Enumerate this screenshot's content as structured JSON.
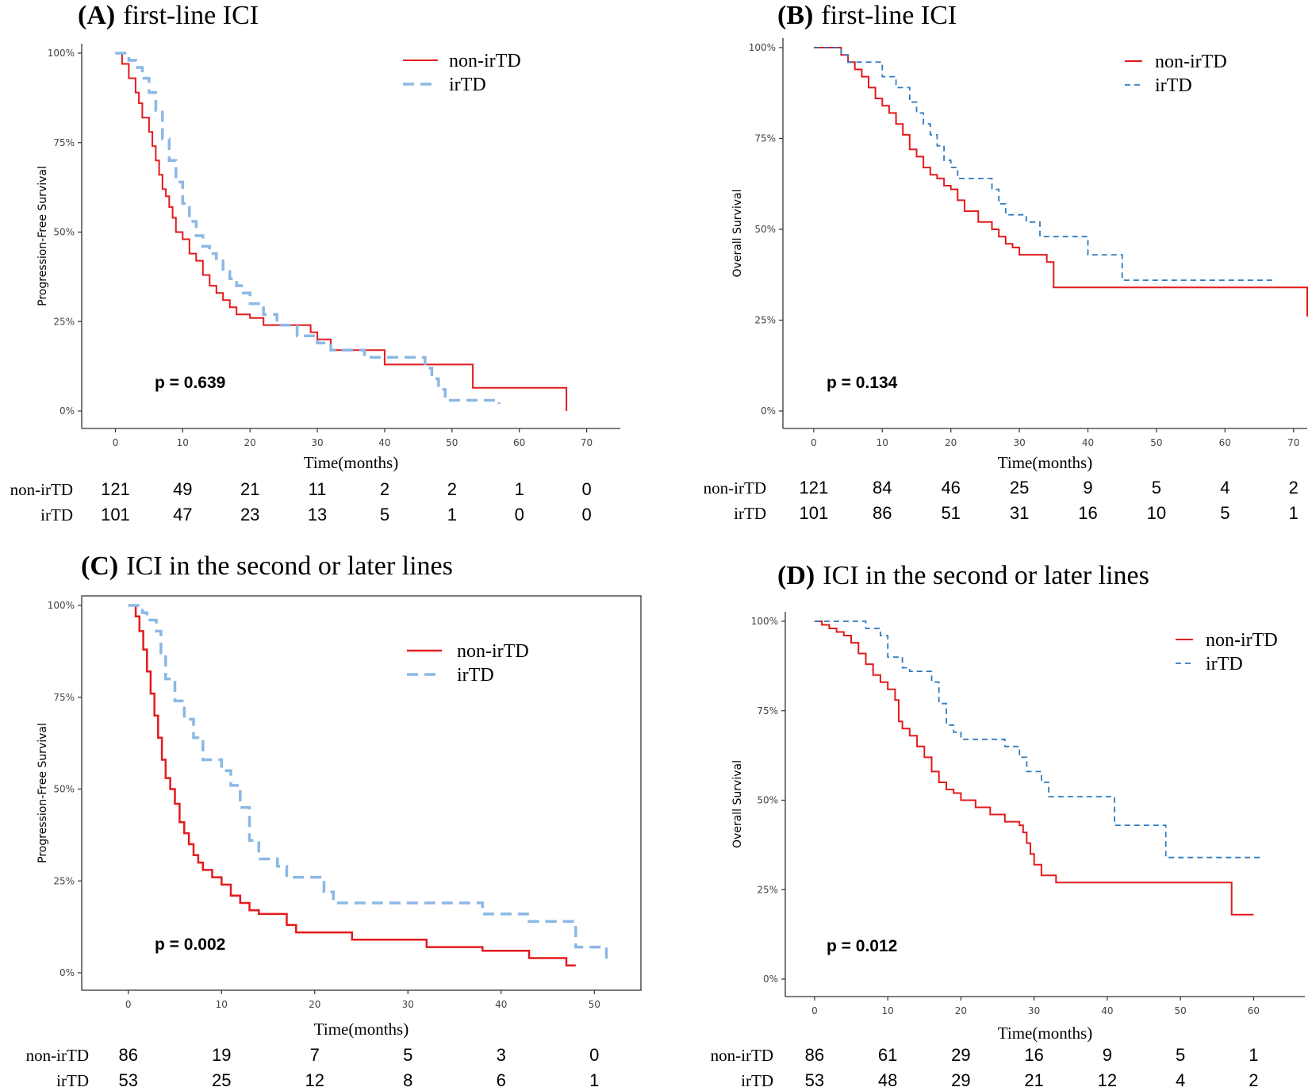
{
  "colors": {
    "red": "#e41a1c",
    "blueA": "#8cb8e6",
    "blueB": "#2e7bc0"
  },
  "chart_data": [
    {
      "type": "line",
      "panel": "A",
      "title_tag": "(A)",
      "title_text": "first-line ICI",
      "ylabel": "Progression-Free Survival",
      "xlabel": "Time(months)",
      "xlim": [
        -5,
        75
      ],
      "ylim": [
        0,
        1
      ],
      "xticks": [
        0,
        10,
        20,
        30,
        40,
        50,
        60,
        70
      ],
      "yticks": [
        0,
        0.25,
        0.5,
        0.75,
        1
      ],
      "ytick_labels": [
        "0%",
        "25%",
        "50%",
        "75%",
        "100%"
      ],
      "p_value": "p = 0.639",
      "series": [
        {
          "name": "non-irTD",
          "color": "#e41a1c",
          "dash": "",
          "width": 2,
          "x": [
            0,
            1,
            2,
            3,
            3.5,
            4,
            5,
            5.5,
            6,
            6.5,
            7,
            7.5,
            8,
            8.5,
            9,
            10,
            11,
            12,
            13,
            14,
            15,
            16,
            17,
            18,
            20,
            22,
            24,
            29,
            30,
            32,
            38,
            40,
            45,
            48,
            53,
            53.1,
            67,
            67
          ],
          "values": [
            1,
            0.97,
            0.93,
            0.89,
            0.86,
            0.82,
            0.78,
            0.74,
            0.7,
            0.66,
            0.62,
            0.6,
            0.57,
            0.54,
            0.5,
            0.48,
            0.44,
            0.42,
            0.38,
            0.35,
            0.33,
            0.31,
            0.29,
            0.27,
            0.26,
            0.24,
            0.24,
            0.22,
            0.2,
            0.17,
            0.17,
            0.13,
            0.13,
            0.13,
            0.13,
            0.065,
            0.065,
            0
          ]
        },
        {
          "name": "irTD",
          "color": "#8cb8e6",
          "dash": "14,8",
          "width": 3.5,
          "x": [
            0,
            1,
            2,
            3,
            4,
            5,
            6,
            7,
            8,
            9,
            10,
            11,
            12,
            13,
            14,
            15,
            16,
            17,
            18,
            19,
            20,
            22,
            24,
            27,
            30,
            32,
            37,
            40,
            45,
            46,
            47,
            48,
            49,
            50,
            54,
            57
          ],
          "values": [
            1,
            1,
            0.98,
            0.96,
            0.93,
            0.89,
            0.84,
            0.76,
            0.7,
            0.64,
            0.58,
            0.53,
            0.49,
            0.46,
            0.44,
            0.42,
            0.39,
            0.37,
            0.35,
            0.33,
            0.3,
            0.27,
            0.24,
            0.21,
            0.19,
            0.17,
            0.15,
            0.15,
            0.15,
            0.12,
            0.09,
            0.06,
            0.03,
            0.03,
            0.03,
            0.02
          ]
        }
      ],
      "risk_table": {
        "times": [
          0,
          10,
          20,
          30,
          40,
          50,
          60,
          70
        ],
        "rows": [
          {
            "name": "non-irTD",
            "values": [
              "121",
              "49",
              "21",
              "11",
              "2",
              "2",
              "1",
              "0"
            ]
          },
          {
            "name": "irTD",
            "values": [
              "101",
              "47",
              "23",
              "13",
              "5",
              "1",
              "0",
              "0"
            ]
          }
        ]
      }
    },
    {
      "type": "line",
      "panel": "B",
      "title_tag": "(B)",
      "title_text": "first-line ICI",
      "ylabel": "Overall Survival",
      "xlabel": "Time(months)",
      "xlim": [
        -4.5,
        72
      ],
      "ylim": [
        0,
        1
      ],
      "xticks": [
        0,
        10,
        20,
        30,
        40,
        50,
        60,
        70
      ],
      "yticks": [
        0,
        0.25,
        0.5,
        0.75,
        1
      ],
      "ytick_labels": [
        "0%",
        "25%",
        "50%",
        "75%",
        "100%"
      ],
      "p_value": "p = 0.134",
      "series": [
        {
          "name": "non-irTD",
          "color": "#e41a1c",
          "dash": "",
          "width": 2,
          "x": [
            0,
            3,
            4,
            5,
            6,
            7,
            8,
            9,
            10,
            11,
            12,
            13,
            14,
            15,
            16,
            17,
            18,
            19,
            20,
            21,
            22,
            24,
            26,
            27,
            28,
            29,
            30,
            34,
            35,
            64,
            72
          ],
          "values": [
            1,
            1,
            0.98,
            0.96,
            0.94,
            0.92,
            0.89,
            0.86,
            0.84,
            0.82,
            0.79,
            0.76,
            0.72,
            0.7,
            0.67,
            0.65,
            0.64,
            0.62,
            0.61,
            0.58,
            0.55,
            0.52,
            0.5,
            0.48,
            0.46,
            0.45,
            0.43,
            0.41,
            0.34,
            0.34,
            0.26
          ]
        },
        {
          "name": "irTD",
          "color": "#2e7bc0",
          "dash": "7,5",
          "width": 1.8,
          "x": [
            0,
            3,
            4,
            5,
            8,
            10,
            12,
            14,
            15,
            16,
            17,
            18,
            19,
            20,
            21,
            25,
            26,
            27,
            28,
            29,
            31,
            33,
            35,
            40,
            45,
            67
          ],
          "values": [
            1,
            1,
            0.98,
            0.96,
            0.96,
            0.92,
            0.89,
            0.85,
            0.82,
            0.79,
            0.76,
            0.73,
            0.69,
            0.67,
            0.64,
            0.64,
            0.61,
            0.57,
            0.54,
            0.54,
            0.52,
            0.48,
            0.48,
            0.43,
            0.36,
            0.36
          ]
        }
      ],
      "risk_table": {
        "times": [
          0,
          10,
          20,
          30,
          40,
          50,
          60,
          70
        ],
        "rows": [
          {
            "name": "non-irTD",
            "values": [
              "121",
              "84",
              "46",
              "25",
              "9",
              "5",
              "4",
              "2"
            ]
          },
          {
            "name": "irTD",
            "values": [
              "101",
              "86",
              "51",
              "31",
              "16",
              "10",
              "5",
              "1"
            ]
          }
        ]
      }
    },
    {
      "type": "line",
      "panel": "C",
      "title_tag": "(C)",
      "title_text": "ICI in the second or later lines",
      "ylabel": "Progression-Free Survival",
      "xlabel": "Time(months)",
      "xlim": [
        -5,
        55
      ],
      "ylim": [
        0,
        1
      ],
      "xticks": [
        0,
        10,
        20,
        30,
        40,
        50
      ],
      "yticks": [
        0,
        0.25,
        0.5,
        0.75,
        1
      ],
      "ytick_labels": [
        "0%",
        "25%",
        "50%",
        "75%",
        "100%"
      ],
      "p_value": "p = 0.002",
      "series": [
        {
          "name": "non-irTD",
          "color": "#e41a1c",
          "dash": "",
          "width": 2.5,
          "x": [
            0,
            0.8,
            1.2,
            1.6,
            2,
            2.4,
            2.8,
            3.2,
            3.6,
            4,
            4.5,
            5,
            5.5,
            6,
            6.5,
            7,
            7.5,
            8,
            9,
            10,
            11,
            12,
            13,
            14,
            17,
            18,
            20,
            24,
            32,
            38,
            43,
            47,
            48
          ],
          "values": [
            1,
            0.97,
            0.93,
            0.88,
            0.82,
            0.76,
            0.7,
            0.64,
            0.58,
            0.53,
            0.5,
            0.46,
            0.41,
            0.38,
            0.35,
            0.32,
            0.3,
            0.28,
            0.26,
            0.24,
            0.21,
            0.19,
            0.17,
            0.16,
            0.13,
            0.11,
            0.11,
            0.09,
            0.07,
            0.06,
            0.04,
            0.02,
            0.02
          ]
        },
        {
          "name": "irTD",
          "color": "#8cb8e6",
          "dash": "14,8",
          "width": 3.5,
          "x": [
            0,
            1,
            1.5,
            2,
            3,
            3.5,
            4,
            5,
            6,
            7,
            8,
            10,
            11,
            12,
            13,
            14,
            16,
            17,
            20,
            21,
            22,
            37,
            38,
            42,
            43,
            47,
            48,
            51,
            51.3
          ],
          "values": [
            1,
            1,
            0.98,
            0.96,
            0.93,
            0.87,
            0.8,
            0.74,
            0.69,
            0.64,
            0.58,
            0.55,
            0.51,
            0.45,
            0.36,
            0.31,
            0.29,
            0.26,
            0.26,
            0.22,
            0.19,
            0.19,
            0.16,
            0.16,
            0.14,
            0.14,
            0.07,
            0.07,
            0.03
          ]
        }
      ],
      "risk_table": {
        "times": [
          0,
          10,
          20,
          30,
          40,
          50
        ],
        "rows": [
          {
            "name": "non-irTD",
            "values": [
              "86",
              "19",
              "7",
              "5",
              "3",
              "0"
            ]
          },
          {
            "name": "irTD",
            "values": [
              "53",
              "25",
              "12",
              "8",
              "6",
              "1"
            ]
          }
        ]
      }
    },
    {
      "type": "line",
      "panel": "D",
      "title_tag": "(D)",
      "title_text": "ICI in the second or later lines",
      "ylabel": "Overall Survival",
      "xlabel": "Time(months)",
      "xlim": [
        -4,
        67
      ],
      "ylim": [
        0,
        1
      ],
      "xticks": [
        0,
        10,
        20,
        30,
        40,
        50,
        60
      ],
      "yticks": [
        0,
        0.25,
        0.5,
        0.75,
        1
      ],
      "ytick_labels": [
        "0%",
        "25%",
        "50%",
        "75%",
        "100%"
      ],
      "p_value": "p = 0.012",
      "series": [
        {
          "name": "non-irTD",
          "color": "#e41a1c",
          "dash": "",
          "width": 2,
          "x": [
            0,
            1,
            2,
            3,
            4,
            5,
            6,
            7,
            8,
            9,
            10,
            11,
            11.5,
            12,
            13,
            14,
            15,
            16,
            17,
            18,
            19,
            20,
            22,
            24,
            26,
            28,
            28.5,
            29,
            29.5,
            30,
            31,
            33,
            57,
            60
          ],
          "values": [
            1,
            0.99,
            0.98,
            0.97,
            0.96,
            0.94,
            0.91,
            0.88,
            0.85,
            0.83,
            0.81,
            0.78,
            0.72,
            0.7,
            0.68,
            0.65,
            0.62,
            0.58,
            0.55,
            0.53,
            0.52,
            0.5,
            0.48,
            0.46,
            0.44,
            0.43,
            0.41,
            0.38,
            0.35,
            0.32,
            0.29,
            0.27,
            0.18,
            0.18
          ]
        },
        {
          "name": "irTD",
          "color": "#2e7bc0",
          "dash": "7,5",
          "width": 1.8,
          "x": [
            0,
            3,
            6,
            7,
            9,
            10,
            12,
            13,
            16,
            17,
            18,
            19,
            20,
            22,
            26,
            28,
            29,
            31,
            32,
            40,
            41,
            48,
            61
          ],
          "values": [
            1,
            1,
            1,
            0.98,
            0.96,
            0.9,
            0.87,
            0.86,
            0.83,
            0.77,
            0.71,
            0.69,
            0.67,
            0.67,
            0.65,
            0.62,
            0.58,
            0.55,
            0.51,
            0.51,
            0.43,
            0.34,
            0.34
          ]
        }
      ],
      "risk_table": {
        "times": [
          0,
          10,
          20,
          30,
          40,
          50,
          60
        ],
        "rows": [
          {
            "name": "non-irTD",
            "values": [
              "86",
              "61",
              "29",
              "16",
              "9",
              "5",
              "1"
            ]
          },
          {
            "name": "irTD",
            "values": [
              "53",
              "48",
              "29",
              "21",
              "12",
              "4",
              "2"
            ]
          }
        ]
      }
    }
  ]
}
